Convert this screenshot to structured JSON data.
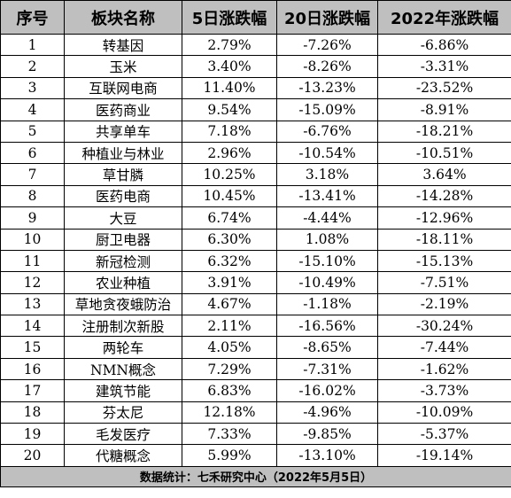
{
  "headers": [
    "序号",
    "板块名称",
    "5日涨跌幅",
    "20日涨跌幅",
    "2022年涨跌幅"
  ],
  "rows": [
    [
      "1",
      "转基因",
      "2.79%",
      "-7.26%",
      "-6.86%"
    ],
    [
      "2",
      "玉米",
      "3.40%",
      "-8.26%",
      "-3.31%"
    ],
    [
      "3",
      "互联网电商",
      "11.40%",
      "-13.23%",
      "-23.52%"
    ],
    [
      "4",
      "医药商业",
      "9.54%",
      "-15.09%",
      "-8.91%"
    ],
    [
      "5",
      "共享单车",
      "7.18%",
      "-6.76%",
      "-18.21%"
    ],
    [
      "6",
      "种植业与林业",
      "2.96%",
      "-10.54%",
      "-10.51%"
    ],
    [
      "7",
      "草甘膦",
      "10.25%",
      "3.18%",
      "3.64%"
    ],
    [
      "8",
      "医药电商",
      "10.45%",
      "-13.41%",
      "-14.28%"
    ],
    [
      "9",
      "大豆",
      "6.74%",
      "-4.44%",
      "-12.96%"
    ],
    [
      "10",
      "厨卫电器",
      "6.30%",
      "1.08%",
      "-18.11%"
    ],
    [
      "11",
      "新冠检测",
      "6.32%",
      "-15.10%",
      "-15.13%"
    ],
    [
      "12",
      "农业种植",
      "3.91%",
      "-10.49%",
      "-7.51%"
    ],
    [
      "13",
      "草地贪夜蛾防治",
      "4.67%",
      "-1.18%",
      "-2.19%"
    ],
    [
      "14",
      "注册制次新股",
      "2.11%",
      "-16.56%",
      "-30.24%"
    ],
    [
      "15",
      "两轮车",
      "4.05%",
      "-8.65%",
      "-7.44%"
    ],
    [
      "16",
      "NMN概念",
      "7.29%",
      "-7.31%",
      "-1.62%"
    ],
    [
      "17",
      "建筑节能",
      "6.83%",
      "-16.02%",
      "-3.73%"
    ],
    [
      "18",
      "芬太尼",
      "12.18%",
      "-4.96%",
      "-10.09%"
    ],
    [
      "19",
      "毛发医疗",
      "7.33%",
      "-9.85%",
      "-5.37%"
    ],
    [
      "20",
      "代糖概念",
      "5.99%",
      "-13.10%",
      "-19.14%"
    ]
  ],
  "footer": "数据统计：七禾研究中心（2022年5月5日）",
  "colors": {
    "header_bg": "#bfbfbf",
    "footer_bg": "#bfbfbf",
    "border": "#000000",
    "text": "#000000"
  }
}
